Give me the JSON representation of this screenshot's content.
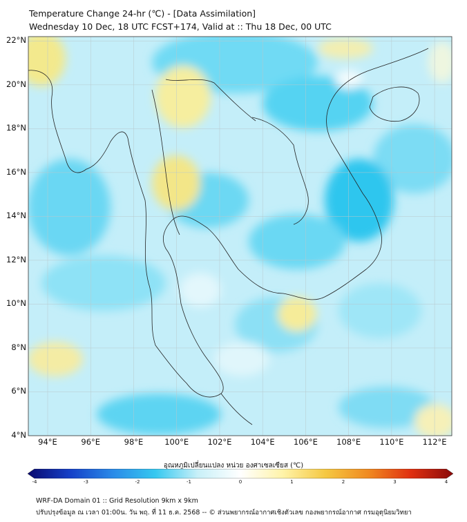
{
  "title": {
    "line1": "Temperature Change 24-hr (℃) - [Data Assimilation]",
    "line2": "Wednesday 10 Dec, 18 UTC FCST+174, Valid at :: Thu 18 Dec, 00 UTC"
  },
  "map": {
    "lat_labels": [
      "22°N",
      "20°N",
      "18°N",
      "16°N",
      "14°N",
      "12°N",
      "10°N",
      "8°N",
      "6°N",
      "4°N"
    ],
    "lon_labels": [
      "94°E",
      "96°E",
      "98°E",
      "100°E",
      "102°E",
      "104°E",
      "106°E",
      "108°E",
      "110°E",
      "112°E"
    ],
    "lat_range": [
      4,
      22.2
    ],
    "lon_range": [
      93.1,
      112.8
    ],
    "field_colors": {
      "light_cyan": "#bfeefa",
      "cyan": "#5fd6f3",
      "strong_cyan": "#2fc6ee",
      "yellow": "#f6ec9c",
      "white": "#eef9fc"
    }
  },
  "colorbar": {
    "title": "อุณหภูมิเปลี่ยนแปลง หน่วย องศาเซลเซียส (℃)",
    "ticks": [
      "-4",
      "-3",
      "-2",
      "-1",
      "0",
      "1",
      "2",
      "3",
      "4"
    ],
    "range": [
      -4,
      4
    ],
    "colors": [
      "#0a0a6e",
      "#1540c8",
      "#2a8ae8",
      "#35c8f0",
      "#c8f0f8",
      "#ffffff",
      "#fff3a8",
      "#f5c842",
      "#f08a20",
      "#e03010",
      "#8a0a0a"
    ]
  },
  "footer": {
    "line1": "WRF-DA Domain 01 :: Grid Resolution 9km x 9km",
    "line2": "ปรับปรุงข้อมูล ณ เวลา 01:00น. วัน พฤ. ที่ 11 ธ.ค. 2568 -- © ส่วนพยากรณ์อากาศเชิงตัวเลข กองพยากรณ์อากาศ กรมอุตุนิยมวิทยา"
  }
}
